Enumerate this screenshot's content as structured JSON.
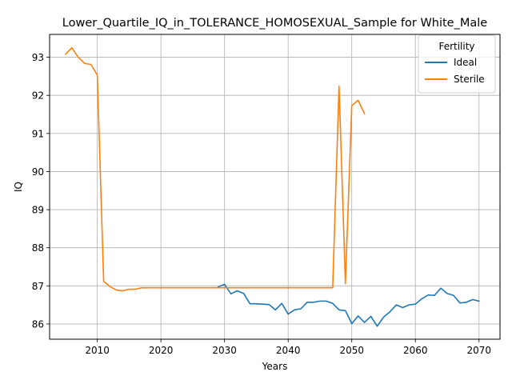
{
  "chart_data": {
    "type": "line",
    "title": "Lower_Quartile_IQ_in_TOLERANCE_HOMOSEXUAL_Sample for White_Male",
    "xlabel": "Years",
    "ylabel": "IQ",
    "xlim": [
      2002.5,
      2073.3
    ],
    "ylim": [
      85.6,
      93.6
    ],
    "xticks": [
      2010,
      2020,
      2030,
      2040,
      2050,
      2060,
      2070
    ],
    "yticks": [
      86,
      87,
      88,
      89,
      90,
      91,
      92,
      93
    ],
    "grid": true,
    "legend": {
      "title": "Fertility",
      "placement": "top-right"
    },
    "series": [
      {
        "name": "Ideal",
        "color": "#1f77b4",
        "x": [
          2029,
          2030,
          2031,
          2032,
          2033,
          2034,
          2035,
          2036,
          2037,
          2038,
          2039,
          2040,
          2041,
          2042,
          2043,
          2044,
          2045,
          2046,
          2047,
          2048,
          2049,
          2050,
          2051,
          2052,
          2053,
          2054,
          2055,
          2056,
          2057,
          2058,
          2059,
          2060,
          2061,
          2062,
          2063,
          2064,
          2065,
          2066,
          2067,
          2068,
          2069,
          2070
        ],
        "y": [
          86.97,
          87.04,
          86.79,
          86.87,
          86.8,
          86.53,
          86.53,
          86.52,
          86.51,
          86.37,
          86.54,
          86.26,
          86.37,
          86.4,
          86.57,
          86.57,
          86.6,
          86.6,
          86.54,
          86.37,
          86.35,
          86.01,
          86.21,
          86.04,
          86.2,
          85.94,
          86.18,
          86.32,
          86.5,
          86.43,
          86.5,
          86.52,
          86.66,
          86.76,
          86.75,
          86.94,
          86.8,
          86.75,
          86.55,
          86.57,
          86.64,
          86.6
        ]
      },
      {
        "name": "Sterile",
        "color": "#ff7f0e",
        "x": [
          2005,
          2006,
          2007,
          2008,
          2009,
          2010,
          2011,
          2012,
          2013,
          2014,
          2015,
          2016,
          2017,
          2018,
          2019,
          2020,
          2021,
          2022,
          2023,
          2024,
          2025,
          2026,
          2027,
          2028,
          2029,
          2030,
          2031,
          2032,
          2033,
          2034,
          2035,
          2036,
          2037,
          2038,
          2039,
          2040,
          2041,
          2042,
          2043,
          2044,
          2045,
          2046,
          2047,
          2048,
          2049,
          2050,
          2051,
          2052
        ],
        "y": [
          93.08,
          93.25,
          93.0,
          92.84,
          92.81,
          92.53,
          87.12,
          86.98,
          86.89,
          86.87,
          86.91,
          86.91,
          86.95,
          86.95,
          86.95,
          86.95,
          86.95,
          86.95,
          86.95,
          86.95,
          86.95,
          86.95,
          86.95,
          86.95,
          86.95,
          86.95,
          86.95,
          86.95,
          86.95,
          86.95,
          86.95,
          86.95,
          86.95,
          86.95,
          86.95,
          86.95,
          86.95,
          86.95,
          86.95,
          86.95,
          86.95,
          86.95,
          86.95,
          92.24,
          87.06,
          91.73,
          91.87,
          91.52
        ]
      }
    ]
  }
}
